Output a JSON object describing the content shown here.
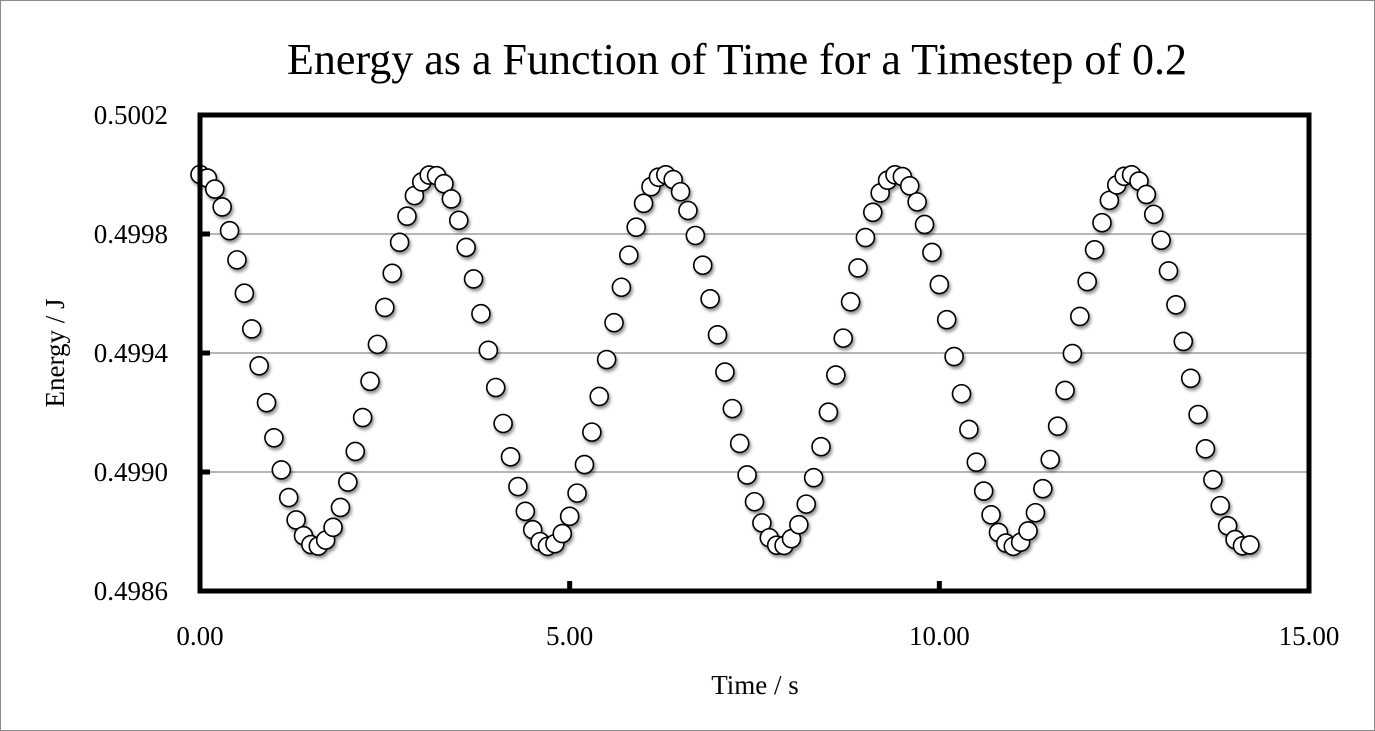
{
  "chart_data": {
    "type": "scatter",
    "title": "Energy as a Function of Time for a Timestep of 0.2",
    "xlabel": "Time / s",
    "ylabel": "Energy / J",
    "xlim": [
      0,
      15
    ],
    "ylim": [
      0.4986,
      0.5002
    ],
    "x_ticks": [
      "0.00",
      "5.00",
      "10.00",
      "15.00"
    ],
    "y_ticks": [
      "0.5002",
      "0.4998",
      "0.4994",
      "0.4990",
      "0.4986"
    ],
    "grid": "horizontal major gridlines",
    "legend": "none",
    "marker": {
      "shape": "circle",
      "fill": "#ffffff",
      "stroke": "#000000"
    },
    "x": [
      0,
      0.1,
      0.2,
      0.3,
      0.4,
      0.5,
      0.6,
      0.7,
      0.8,
      0.9,
      1.0,
      1.1,
      1.2,
      1.3,
      1.4,
      1.5,
      1.6,
      1.7,
      1.8,
      1.9,
      2.0,
      2.1,
      2.2,
      2.3,
      2.4,
      2.5,
      2.6,
      2.7,
      2.8,
      2.9,
      3.0,
      3.1,
      3.2,
      3.3,
      3.4,
      3.5,
      3.6,
      3.7,
      3.8,
      3.9,
      4.0,
      4.1,
      4.2,
      4.3,
      4.4,
      4.5,
      4.6,
      4.7,
      4.8,
      4.9,
      5.0,
      5.1,
      5.2,
      5.3,
      5.4,
      5.5,
      5.6,
      5.7,
      5.8,
      5.9,
      6.0,
      6.1,
      6.2,
      6.3,
      6.4,
      6.5,
      6.6,
      6.7,
      6.8,
      6.9,
      7.0,
      7.1,
      7.2,
      7.3,
      7.4,
      7.5,
      7.6,
      7.7,
      7.8,
      7.9,
      8.0,
      8.1,
      8.2,
      8.3,
      8.4,
      8.5,
      8.6,
      8.7,
      8.8,
      8.9,
      9.0,
      9.1,
      9.2,
      9.3,
      9.4,
      9.5,
      9.6,
      9.7,
      9.8,
      9.9,
      10.0,
      10.1,
      10.2,
      10.3,
      10.4,
      10.5,
      10.6,
      10.7,
      10.8,
      10.9,
      11.0,
      11.1,
      11.2,
      11.3,
      11.4,
      11.5,
      11.6,
      11.7,
      11.8,
      11.9,
      12.0,
      12.1,
      12.2,
      12.3,
      12.4,
      12.5,
      12.6,
      12.7,
      12.8,
      12.9,
      13.0,
      13.1,
      13.2,
      13.3,
      13.4,
      13.5,
      13.6,
      13.7,
      13.8,
      13.9,
      14.0,
      14.1,
      14.2
    ],
    "y": [
      0.5,
      0.499988,
      0.499951,
      0.499891,
      0.499811,
      0.499713,
      0.499601,
      0.499481,
      0.499357,
      0.499233,
      0.499115,
      0.499007,
      0.498914,
      0.498839,
      0.498786,
      0.498756,
      0.498751,
      0.498771,
      0.498814,
      0.498881,
      0.498966,
      0.499069,
      0.499183,
      0.499305,
      0.499429,
      0.499553,
      0.499668,
      0.499772,
      0.49986,
      0.499929,
      0.499975,
      0.499998,
      0.499996,
      0.499969,
      0.499918,
      0.499846,
      0.499755,
      0.499649,
      0.499532,
      0.499409,
      0.499284,
      0.499163,
      0.499051,
      0.498951,
      0.498868,
      0.498806,
      0.498766,
      0.49875,
      0.498759,
      0.498793,
      0.498851,
      0.498929,
      0.499025,
      0.499134,
      0.499254,
      0.499378,
      0.499502,
      0.499621,
      0.499729,
      0.499823,
      0.499903,
      0.499959,
      0.499991,
      0.499999,
      0.499983,
      0.499942,
      0.499879,
      0.499795,
      0.499695,
      0.499582,
      0.499461,
      0.499336,
      0.499213,
      0.499096,
      0.49899,
      0.4989,
      0.498829,
      0.498779,
      0.498754,
      0.498753,
      0.498776,
      0.498823,
      0.498892,
      0.498981,
      0.499085,
      0.499201,
      0.499326,
      0.49945,
      0.499572,
      0.499686,
      0.499788,
      0.499873,
      0.499938,
      0.499981,
      0.499999,
      0.499993,
      0.499962,
      0.499908,
      0.499832,
      0.499738,
      0.49963,
      0.499512,
      0.499388,
      0.499263,
      0.499143,
      0.499033,
      0.498936,
      0.498856,
      0.498797,
      0.498761,
      0.49875,
      0.498764,
      0.498802,
      0.498863,
      0.498944,
      0.499042,
      0.499154,
      0.499274,
      0.499398,
      0.499523,
      0.49964,
      0.499747,
      0.499838,
      0.499913,
      0.499965,
      0.499994,
      0.499999,
      0.499978,
      0.499933,
      0.499866,
      0.499779,
      0.499676,
      0.499562,
      0.499439,
      0.499315,
      0.499193,
      0.499078,
      0.498974,
      0.498887,
      0.498819,
      0.498773,
      0.498752,
      0.498755
    ]
  }
}
